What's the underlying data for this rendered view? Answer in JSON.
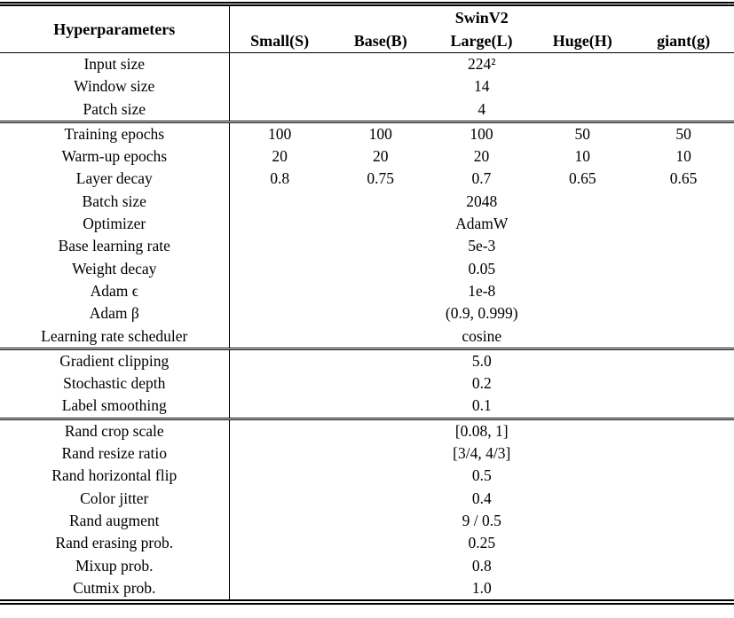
{
  "colors": {
    "text": "#000000",
    "background": "#ffffff",
    "rule": "#000000"
  },
  "table": {
    "header": {
      "col1": "Hyperparameters",
      "group": "SwinV2",
      "columns": [
        "Small(S)",
        "Base(B)",
        "Large(L)",
        "Huge(H)",
        "giant(g)"
      ]
    },
    "sections": [
      {
        "rows": [
          {
            "label": "Input size",
            "span": "224²"
          },
          {
            "label": "Window size",
            "span": "14"
          },
          {
            "label": "Patch size",
            "span": "4"
          }
        ]
      },
      {
        "rows": [
          {
            "label": "Training epochs",
            "values": [
              "100",
              "100",
              "100",
              "50",
              "50"
            ]
          },
          {
            "label": "Warm-up epochs",
            "values": [
              "20",
              "20",
              "20",
              "10",
              "10"
            ]
          },
          {
            "label": "Layer decay",
            "values": [
              "0.8",
              "0.75",
              "0.7",
              "0.65",
              "0.65"
            ]
          },
          {
            "label": "Batch size",
            "span": "2048"
          },
          {
            "label": "Optimizer",
            "span": "AdamW"
          },
          {
            "label": "Base learning rate",
            "span": "5e-3"
          },
          {
            "label": "Weight decay",
            "span": "0.05"
          },
          {
            "label": "Adam ϵ",
            "span": "1e-8"
          },
          {
            "label": "Adam β",
            "span": "(0.9, 0.999)"
          },
          {
            "label": "Learning rate scheduler",
            "span": "cosine"
          }
        ]
      },
      {
        "rows": [
          {
            "label": "Gradient clipping",
            "span": "5.0"
          },
          {
            "label": "Stochastic depth",
            "span": "0.2"
          },
          {
            "label": "Label smoothing",
            "span": "0.1"
          }
        ]
      },
      {
        "rows": [
          {
            "label": "Rand crop scale",
            "span": "[0.08, 1]"
          },
          {
            "label": "Rand resize ratio",
            "span": "[3/4, 4/3]"
          },
          {
            "label": "Rand horizontal flip",
            "span": "0.5"
          },
          {
            "label": "Color jitter",
            "span": "0.4"
          },
          {
            "label": "Rand augment",
            "span": "9 / 0.5"
          },
          {
            "label": "Rand erasing prob.",
            "span": "0.25"
          },
          {
            "label": "Mixup prob.",
            "span": "0.8"
          },
          {
            "label": "Cutmix prob.",
            "span": "1.0"
          }
        ]
      }
    ]
  }
}
